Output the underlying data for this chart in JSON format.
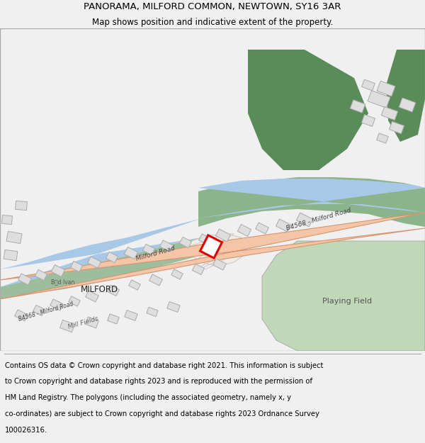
{
  "title": "PANORAMA, MILFORD COMMON, NEWTOWN, SY16 3AR",
  "subtitle": "Map shows position and indicative extent of the property.",
  "footer_line1": "Contains OS data © Crown copyright and database right 2021. This information is subject",
  "footer_line2": "to Crown copyright and database rights 2023 and is reproduced with the permission of",
  "footer_line3": "HM Land Registry. The polygons (including the associated geometry, namely x, y",
  "footer_line4": "co-ordinates) are subject to Crown copyright and database rights 2023 Ordnance Survey",
  "footer_line5": "100026316.",
  "bg_color": "#f0f0f0",
  "map_bg": "#ffffff",
  "road_color": "#f5c5a8",
  "road_edge": "#d4956e",
  "river_color": "#a8c8e8",
  "green_dark": "#5a8c5a",
  "green_mid": "#7aaa7a",
  "green_light": "#c0d8b8",
  "building_fill": "#dedede",
  "building_edge": "#aaaaaa",
  "plot_color": "#dd0000",
  "title_fontsize": 9.5,
  "subtitle_fontsize": 8.5,
  "footer_fontsize": 7.2
}
